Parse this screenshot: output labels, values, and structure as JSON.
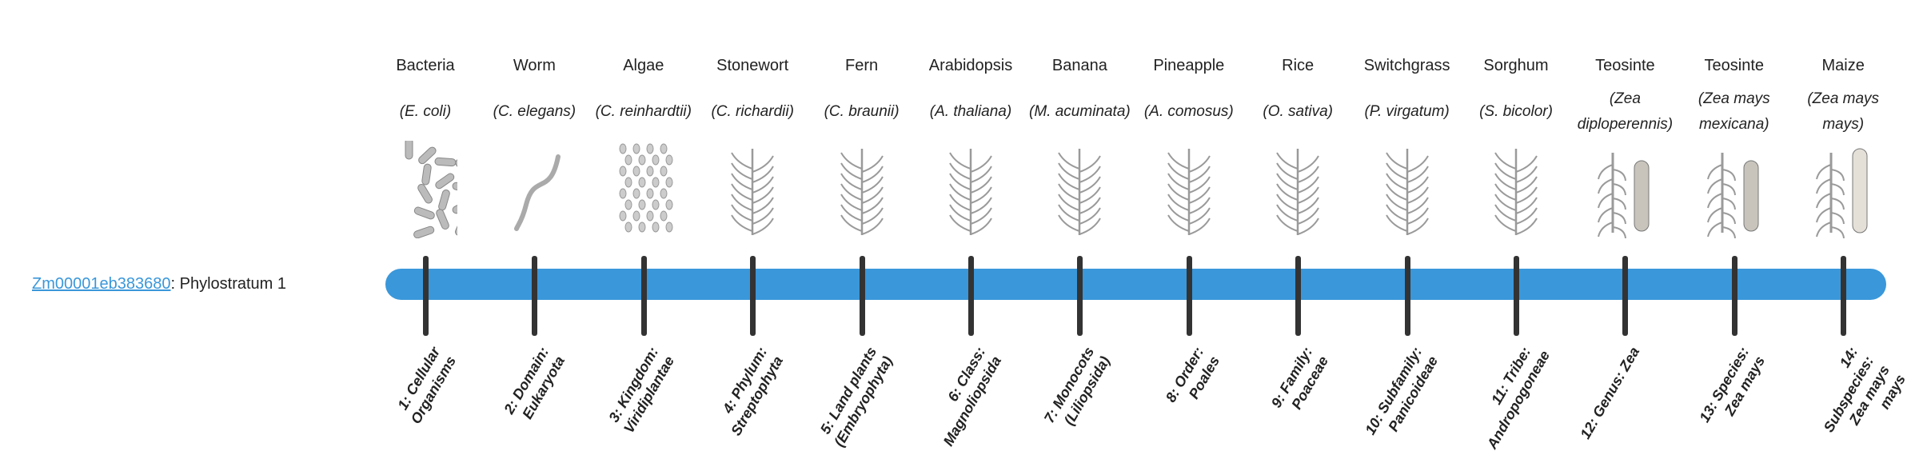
{
  "gene": {
    "id": "Zm00001eb383680",
    "separator": ": ",
    "phylostratum": "Phylostratum 1"
  },
  "colors": {
    "bar": "#3a97da",
    "tick": "#333333",
    "link": "#3a97da"
  },
  "strata": [
    {
      "common": "Bacteria",
      "scientific": "(E. coli)",
      "icon": "bacteria",
      "rank": "1: Cellular Organisms"
    },
    {
      "common": "Worm",
      "scientific": "(C. elegans)",
      "icon": "worm",
      "rank": "2: Domain: Eukaryota"
    },
    {
      "common": "Algae",
      "scientific": "(C. reinhardtii)",
      "icon": "algae",
      "rank": "3: Kingdom: Viridiplantae"
    },
    {
      "common": "Stonewort",
      "scientific": "(C. richardii)",
      "icon": "stonewort",
      "rank": "4: Phylum: Streptophyta"
    },
    {
      "common": "Fern",
      "scientific": "(C. braunii)",
      "icon": "fern",
      "rank": "5: Land plants (Embryophyta)"
    },
    {
      "common": "Arabidopsis",
      "scientific": "(A. thaliana)",
      "icon": "arabidopsis",
      "rank": "6: Class: Magnoliopsida"
    },
    {
      "common": "Banana",
      "scientific": "(M. acuminata)",
      "icon": "banana",
      "rank": "7: Monocots (Liliopsida)"
    },
    {
      "common": "Pineapple",
      "scientific": "(A. comosus)",
      "icon": "pineapple",
      "rank": "8: Order: Poales"
    },
    {
      "common": "Rice",
      "scientific": "(O. sativa)",
      "icon": "rice",
      "rank": "9: Family: Poaceae"
    },
    {
      "common": "Switchgrass",
      "scientific": "(P. virgatum)",
      "icon": "switchgrass",
      "rank": "10: Subfamily: Panicoideae"
    },
    {
      "common": "Sorghum",
      "scientific": "(S. bicolor)",
      "icon": "sorghum",
      "rank": "11: Tribe: Andropogoneae"
    },
    {
      "common": "Teosinte",
      "scientific": "(Zea diploperennis)",
      "icon": "teosinte",
      "rank": "12: Genus: Zea"
    },
    {
      "common": "Teosinte",
      "scientific": "(Zea mays mexicana)",
      "icon": "teosinte",
      "rank": "13: Species: Zea mays"
    },
    {
      "common": "Maize",
      "scientific": "(Zea mays mays)",
      "icon": "maize",
      "rank": "14: Subspecies: Zea mays mays"
    }
  ]
}
